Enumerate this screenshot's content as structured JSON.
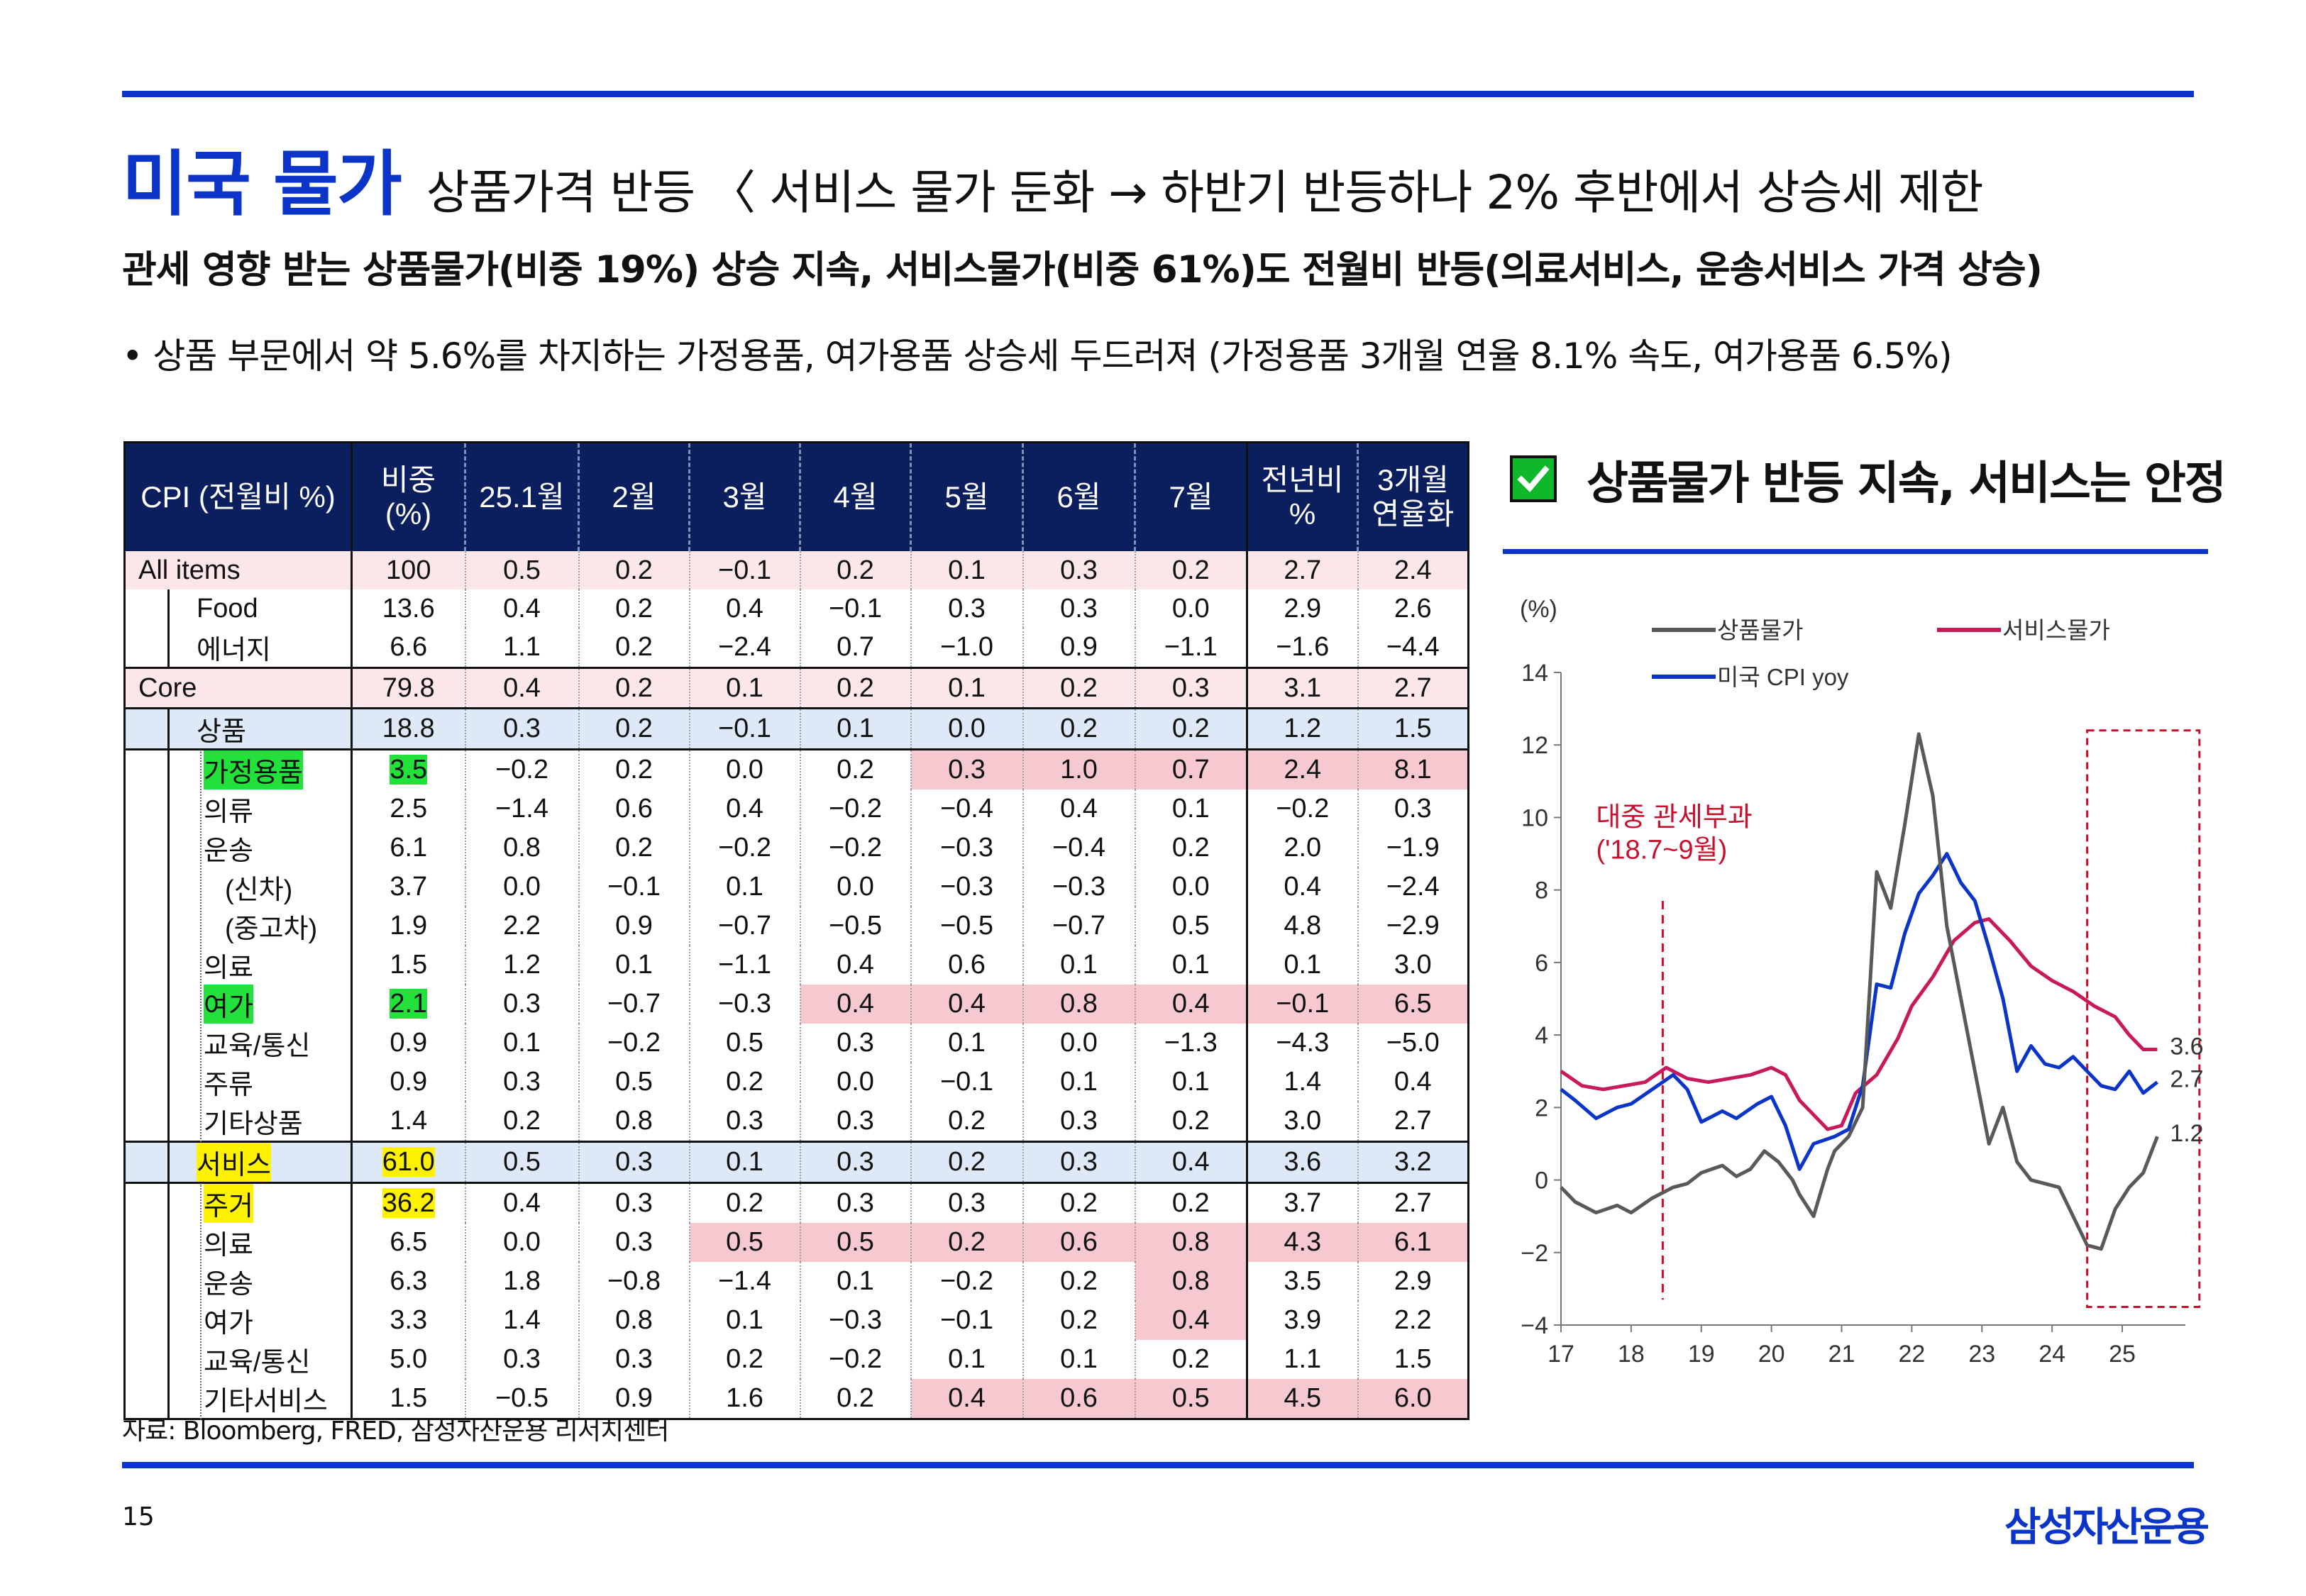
{
  "title": {
    "main": "미국 물가",
    "sub": "상품가격 반등 〈 서비스 물가 둔화  → 하반기 반등하나 2% 후반에서 상승세 제한"
  },
  "subheadline": "관세 영향 받는 상품물가(비중 19%) 상승 지속, 서비스물가(비중 61%)도 전월비 반등(의료서비스, 운송서비스 가격 상승)",
  "bullet": "• 상품 부문에서 약 5.6%를 차지하는 가정용품, 여가용품 상승세 두드러져 (가정용품 3개월 연율 8.1% 속도, 여가용품 6.5%)",
  "table": {
    "headers": [
      "CPI (전월비 %)",
      "비중\n(%)",
      "25.1월",
      "2월",
      "3월",
      "4월",
      "5월",
      "6월",
      "7월",
      "전년비\n%",
      "3개월\n연율화"
    ],
    "rows": [
      {
        "cells": [
          "All items",
          "100",
          "0.5",
          "0.2",
          "-0.1",
          "0.2",
          "0.1",
          "0.3",
          "0.2",
          "2.7",
          "2.4"
        ]
      },
      {
        "cells": [
          "Food",
          "13.6",
          "0.4",
          "0.2",
          "0.4",
          "-0.1",
          "0.3",
          "0.3",
          "0.0",
          "2.9",
          "2.6"
        ]
      },
      {
        "cells": [
          "에너지",
          "6.6",
          "1.1",
          "0.2",
          "-2.4",
          "0.7",
          "-1.0",
          "0.9",
          "-1.1",
          "-1.6",
          "-4.4"
        ]
      },
      {
        "cells": [
          "Core",
          "79.8",
          "0.4",
          "0.2",
          "0.1",
          "0.2",
          "0.1",
          "0.2",
          "0.3",
          "3.1",
          "2.7"
        ]
      },
      {
        "cells": [
          "상품",
          "18.8",
          "0.3",
          "0.2",
          "-0.1",
          "0.1",
          "0.0",
          "0.2",
          "0.2",
          "1.2",
          "1.5"
        ]
      },
      {
        "cells": [
          "가정용품",
          "3.5",
          "-0.2",
          "0.2",
          "0.0",
          "0.2",
          "0.3",
          "1.0",
          "0.7",
          "2.4",
          "8.1"
        ]
      },
      {
        "cells": [
          "의류",
          "2.5",
          "-1.4",
          "0.6",
          "0.4",
          "-0.2",
          "-0.4",
          "0.4",
          "0.1",
          "-0.2",
          "0.3"
        ]
      },
      {
        "cells": [
          "운송",
          "6.1",
          "0.8",
          "0.2",
          "-0.2",
          "-0.2",
          "-0.3",
          "-0.4",
          "0.2",
          "2.0",
          "-1.9"
        ]
      },
      {
        "cells": [
          "(신차)",
          "3.7",
          "0.0",
          "-0.1",
          "0.1",
          "0.0",
          "-0.3",
          "-0.3",
          "0.0",
          "0.4",
          "-2.4"
        ]
      },
      {
        "cells": [
          "(중고차)",
          "1.9",
          "2.2",
          "0.9",
          "-0.7",
          "-0.5",
          "-0.5",
          "-0.7",
          "0.5",
          "4.8",
          "-2.9"
        ]
      },
      {
        "cells": [
          "의료",
          "1.5",
          "1.2",
          "0.1",
          "-1.1",
          "0.4",
          "0.6",
          "0.1",
          "0.1",
          "0.1",
          "3.0"
        ]
      },
      {
        "cells": [
          "여가",
          "2.1",
          "0.3",
          "-0.7",
          "-0.3",
          "0.4",
          "0.4",
          "0.8",
          "0.4",
          "-0.1",
          "6.5"
        ]
      },
      {
        "cells": [
          "교육/통신",
          "0.9",
          "0.1",
          "-0.2",
          "0.5",
          "0.3",
          "0.1",
          "0.0",
          "-1.3",
          "-4.3",
          "-5.0"
        ]
      },
      {
        "cells": [
          "주류",
          "0.9",
          "0.3",
          "0.5",
          "0.2",
          "0.0",
          "-0.1",
          "0.1",
          "0.1",
          "1.4",
          "0.4"
        ]
      },
      {
        "cells": [
          "기타상품",
          "1.4",
          "0.2",
          "0.8",
          "0.3",
          "0.3",
          "0.2",
          "0.3",
          "0.2",
          "3.0",
          "2.7"
        ]
      },
      {
        "cells": [
          "서비스",
          "61.0",
          "0.5",
          "0.3",
          "0.1",
          "0.3",
          "0.2",
          "0.3",
          "0.4",
          "3.6",
          "3.2"
        ]
      },
      {
        "cells": [
          "주거",
          "36.2",
          "0.4",
          "0.3",
          "0.2",
          "0.3",
          "0.3",
          "0.2",
          "0.2",
          "3.7",
          "2.7"
        ]
      },
      {
        "cells": [
          "의료",
          "6.5",
          "0.0",
          "0.3",
          "0.5",
          "0.5",
          "0.2",
          "0.6",
          "0.8",
          "4.3",
          "6.1"
        ]
      },
      {
        "cells": [
          "운송",
          "6.3",
          "1.8",
          "-0.8",
          "-1.4",
          "0.1",
          "-0.2",
          "0.2",
          "0.8",
          "3.5",
          "2.9"
        ]
      },
      {
        "cells": [
          "여가",
          "3.3",
          "1.4",
          "0.8",
          "0.1",
          "-0.3",
          "-0.1",
          "0.2",
          "0.4",
          "3.9",
          "2.2"
        ]
      },
      {
        "cells": [
          "교육/통신",
          "5.0",
          "0.3",
          "0.3",
          "0.2",
          "-0.2",
          "0.1",
          "0.1",
          "0.2",
          "1.1",
          "1.5"
        ]
      },
      {
        "cells": [
          "기타서비스",
          "1.5",
          "-0.5",
          "0.9",
          "1.6",
          "0.2",
          "0.4",
          "0.6",
          "0.5",
          "4.5",
          "6.0"
        ]
      }
    ],
    "highlight_colors": {
      "pink_row": "#fbe6ea",
      "blue_row": "#dde9f6",
      "pink_cell": "#f6c8d0",
      "green": "#21e13a",
      "yellow": "#fff200"
    }
  },
  "source": "자료: Bloomberg, FRED, 삼성자산운용 리서치센터",
  "page_number": "15",
  "logo": "삼성자산운용",
  "chart_title": "상품물가 반등 지속, 서비스는 안정",
  "chart_data": {
    "type": "line",
    "ylabel": "(%)",
    "ylim": [
      -4,
      14
    ],
    "yticks": [
      "14",
      "12",
      "10",
      "8",
      "6",
      "4",
      "2",
      "0",
      "-2",
      "-4"
    ],
    "xticks": [
      "17",
      "18",
      "19",
      "20",
      "21",
      "22",
      "23",
      "24",
      "25"
    ],
    "annotation": [
      "대중 관세부과",
      "('18.7~9월)"
    ],
    "end_labels": [
      "3.6",
      "2.7",
      "1.2"
    ],
    "series": [
      {
        "name": "상품물가",
        "color": "#595959",
        "x": [
          2017.0,
          2017.2,
          2017.5,
          2017.8,
          2018.0,
          2018.3,
          2018.6,
          2018.8,
          2019.0,
          2019.3,
          2019.5,
          2019.7,
          2019.9,
          2020.1,
          2020.3,
          2020.4,
          2020.6,
          2020.8,
          2020.9,
          2021.1,
          2021.3,
          2021.5,
          2021.7,
          2021.9,
          2022.1,
          2022.3,
          2022.5,
          2022.7,
          2022.9,
          2023.1,
          2023.3,
          2023.5,
          2023.7,
          2023.9,
          2024.1,
          2024.3,
          2024.5,
          2024.7,
          2024.9,
          2025.1,
          2025.3,
          2025.5
        ],
        "y": [
          -0.2,
          -0.6,
          -0.9,
          -0.7,
          -0.9,
          -0.5,
          -0.2,
          -0.1,
          0.2,
          0.4,
          0.1,
          0.3,
          0.8,
          0.5,
          0.0,
          -0.4,
          -1.0,
          0.3,
          0.8,
          1.2,
          2.0,
          8.5,
          7.5,
          9.8,
          12.3,
          10.6,
          7.0,
          5.0,
          3.0,
          1.0,
          2.0,
          0.5,
          0.0,
          -0.1,
          -0.2,
          -1.0,
          -1.8,
          -1.9,
          -0.8,
          -0.2,
          0.2,
          1.2
        ]
      },
      {
        "name": "서비스물가",
        "color": "#c8195a",
        "x": [
          2017.0,
          2017.3,
          2017.6,
          2017.9,
          2018.2,
          2018.5,
          2018.8,
          2019.1,
          2019.4,
          2019.7,
          2020.0,
          2020.2,
          2020.4,
          2020.6,
          2020.8,
          2021.0,
          2021.2,
          2021.5,
          2021.8,
          2022.0,
          2022.3,
          2022.6,
          2022.9,
          2023.1,
          2023.4,
          2023.7,
          2024.0,
          2024.3,
          2024.6,
          2024.9,
          2025.1,
          2025.3,
          2025.5
        ],
        "y": [
          3.0,
          2.6,
          2.5,
          2.6,
          2.7,
          3.1,
          2.8,
          2.7,
          2.8,
          2.9,
          3.1,
          2.9,
          2.2,
          1.8,
          1.4,
          1.5,
          2.4,
          2.9,
          3.9,
          4.8,
          5.6,
          6.6,
          7.1,
          7.2,
          6.6,
          5.9,
          5.5,
          5.2,
          4.8,
          4.5,
          4.0,
          3.6,
          3.6
        ]
      },
      {
        "name": "미국 CPI yoy",
        "color": "#0a35c8",
        "x": [
          2017.0,
          2017.2,
          2017.5,
          2017.8,
          2018.0,
          2018.3,
          2018.6,
          2018.8,
          2019.0,
          2019.3,
          2019.5,
          2019.8,
          2020.0,
          2020.2,
          2020.4,
          2020.6,
          2020.9,
          2021.1,
          2021.3,
          2021.5,
          2021.7,
          2021.9,
          2022.1,
          2022.3,
          2022.5,
          2022.7,
          2022.9,
          2023.1,
          2023.3,
          2023.5,
          2023.7,
          2023.9,
          2024.1,
          2024.3,
          2024.5,
          2024.7,
          2024.9,
          2025.1,
          2025.3,
          2025.5
        ],
        "y": [
          2.5,
          2.2,
          1.7,
          2.0,
          2.1,
          2.5,
          2.9,
          2.5,
          1.6,
          1.9,
          1.7,
          2.1,
          2.3,
          1.5,
          0.3,
          1.0,
          1.2,
          1.4,
          2.6,
          5.4,
          5.3,
          6.8,
          7.9,
          8.4,
          9.0,
          8.2,
          7.7,
          6.4,
          5.0,
          3.0,
          3.7,
          3.2,
          3.1,
          3.4,
          3.0,
          2.6,
          2.5,
          3.0,
          2.4,
          2.7
        ]
      }
    ]
  }
}
